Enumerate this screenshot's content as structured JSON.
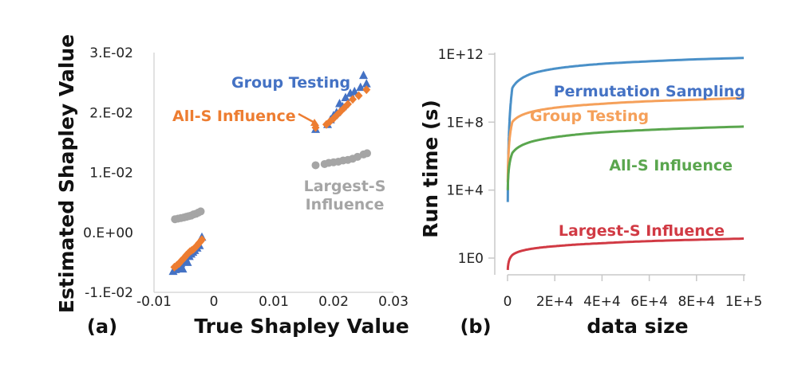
{
  "chart_data": [
    {
      "panel_label": "(a)",
      "type": "scatter",
      "xlabel": "True Shapley Value",
      "ylabel": "Estimated Shapley Value",
      "xlim": [
        -0.01,
        0.03
      ],
      "ylim": [
        -0.01,
        0.03
      ],
      "x_tick_labels": [
        "-0.01",
        "0",
        "0.01",
        "0.02",
        "0.03"
      ],
      "y_tick_labels": [
        "-1.E-02",
        "0.E+00",
        "1.E-02",
        "2.E-02",
        "3.E-02"
      ],
      "grid": false,
      "series": [
        {
          "name": "Group Testing",
          "color": "#4472c4",
          "marker": "triangle",
          "points": [
            [
              -0.0068,
              -0.0065
            ],
            [
              -0.0064,
              -0.0062
            ],
            [
              -0.006,
              -0.0058
            ],
            [
              -0.0057,
              -0.006
            ],
            [
              -0.0055,
              -0.0052
            ],
            [
              -0.0052,
              -0.0061
            ],
            [
              -0.005,
              -0.0048
            ],
            [
              -0.0047,
              -0.0044
            ],
            [
              -0.0044,
              -0.005
            ],
            [
              -0.0041,
              -0.004
            ],
            [
              -0.0038,
              -0.0036
            ],
            [
              -0.0035,
              -0.0033
            ],
            [
              -0.0032,
              -0.003
            ],
            [
              -0.0028,
              -0.0026
            ],
            [
              -0.0024,
              -0.0022
            ],
            [
              -0.002,
              -0.0008
            ],
            [
              0.017,
              0.0172
            ],
            [
              0.019,
              0.018
            ],
            [
              0.0195,
              0.0188
            ],
            [
              0.02,
              0.0195
            ],
            [
              0.0205,
              0.02
            ],
            [
              0.021,
              0.0215
            ],
            [
              0.0215,
              0.021
            ],
            [
              0.022,
              0.0225
            ],
            [
              0.0228,
              0.0232
            ],
            [
              0.0235,
              0.0235
            ],
            [
              0.0245,
              0.0242
            ],
            [
              0.025,
              0.0262
            ],
            [
              0.0255,
              0.0248
            ]
          ]
        },
        {
          "name": "All-S Influence",
          "color": "#ed7d31",
          "marker": "diamond",
          "points": [
            [
              -0.0066,
              -0.0058
            ],
            [
              -0.0062,
              -0.0055
            ],
            [
              -0.0058,
              -0.0052
            ],
            [
              -0.0055,
              -0.0048
            ],
            [
              -0.0052,
              -0.0045
            ],
            [
              -0.0049,
              -0.0042
            ],
            [
              -0.0046,
              -0.0038
            ],
            [
              -0.0043,
              -0.0035
            ],
            [
              -0.004,
              -0.0032
            ],
            [
              -0.0037,
              -0.003
            ],
            [
              -0.0034,
              -0.0028
            ],
            [
              -0.0031,
              -0.0025
            ],
            [
              -0.0028,
              -0.0022
            ],
            [
              -0.0025,
              -0.0018
            ],
            [
              -0.0022,
              -0.0015
            ],
            [
              -0.002,
              -0.0012
            ],
            [
              0.017,
              0.0175
            ],
            [
              0.0188,
              0.018
            ],
            [
              0.0194,
              0.0185
            ],
            [
              0.02,
              0.019
            ],
            [
              0.0206,
              0.0196
            ],
            [
              0.0212,
              0.0202
            ],
            [
              0.0218,
              0.0208
            ],
            [
              0.0224,
              0.0214
            ],
            [
              0.0232,
              0.0222
            ],
            [
              0.0242,
              0.0228
            ],
            [
              0.0255,
              0.0238
            ]
          ]
        },
        {
          "name": "Largest-S Influence",
          "color": "#a5a5a5",
          "marker": "circle",
          "points": [
            [
              -0.0065,
              0.0022
            ],
            [
              -0.006,
              0.0023
            ],
            [
              -0.0055,
              0.0024
            ],
            [
              -0.005,
              0.0025
            ],
            [
              -0.0046,
              0.0026
            ],
            [
              -0.0042,
              0.0027
            ],
            [
              -0.0038,
              0.0028
            ],
            [
              -0.0034,
              0.003
            ],
            [
              -0.003,
              0.0031
            ],
            [
              -0.0026,
              0.0033
            ],
            [
              -0.0022,
              0.0035
            ],
            [
              0.017,
              0.0112
            ],
            [
              0.0185,
              0.0114
            ],
            [
              0.0192,
              0.0116
            ],
            [
              0.02,
              0.0117
            ],
            [
              0.0208,
              0.0118
            ],
            [
              0.0216,
              0.012
            ],
            [
              0.0224,
              0.0121
            ],
            [
              0.0232,
              0.0123
            ],
            [
              0.024,
              0.0126
            ],
            [
              0.025,
              0.013
            ],
            [
              0.0256,
              0.0132
            ]
          ]
        }
      ],
      "annotations": [
        {
          "text": "Group Testing",
          "series": 0
        },
        {
          "text": "All-S Influence",
          "series": 1
        },
        {
          "text": "Largest-S",
          "series": 2
        },
        {
          "text": "Influence",
          "series": 2
        }
      ]
    },
    {
      "panel_label": "(b)",
      "type": "line",
      "xlabel": "data size",
      "ylabel": "Run time (s)",
      "xlim": [
        0,
        100000
      ],
      "y_scale": "log",
      "ylim": [
        1,
        1000000000000
      ],
      "x_tick_labels": [
        "0",
        "2E+4",
        "4E+4",
        "6E+4",
        "8E+4",
        "1E+5"
      ],
      "y_tick_labels": [
        "1E0",
        "1E+4",
        "1E+8",
        "1E+12"
      ],
      "grid": false,
      "series": [
        {
          "name": "Permutation Sampling",
          "color": "#4a90c8",
          "x": [
            100,
            2000,
            10000,
            20000,
            40000,
            60000,
            80000,
            100000
          ],
          "y": [
            2000,
            10000000000,
            70000000000,
            140000000000,
            270000000000,
            380000000000,
            500000000000,
            600000000000
          ]
        },
        {
          "name": "Group Testing",
          "color": "#f5a05a",
          "x": [
            100,
            2000,
            10000,
            20000,
            40000,
            60000,
            80000,
            100000
          ],
          "y": [
            30000,
            100000000,
            400000000,
            700000000,
            1200000000,
            1700000000,
            2100000000,
            2600000000
          ]
        },
        {
          "name": "All-S Influence",
          "color": "#5aa64e",
          "x": [
            100,
            2000,
            10000,
            20000,
            40000,
            60000,
            80000,
            100000
          ],
          "y": [
            10000,
            1500000,
            7000000,
            13000000,
            25000000,
            35000000,
            45000000,
            55000000
          ]
        },
        {
          "name": "Largest-S Influence",
          "color": "#d13a44",
          "x": [
            100,
            2000,
            10000,
            20000,
            40000,
            60000,
            80000,
            100000
          ],
          "y": [
            0.2,
            1.5,
            3.5,
            5,
            7.5,
            10,
            12,
            14
          ]
        }
      ]
    }
  ]
}
